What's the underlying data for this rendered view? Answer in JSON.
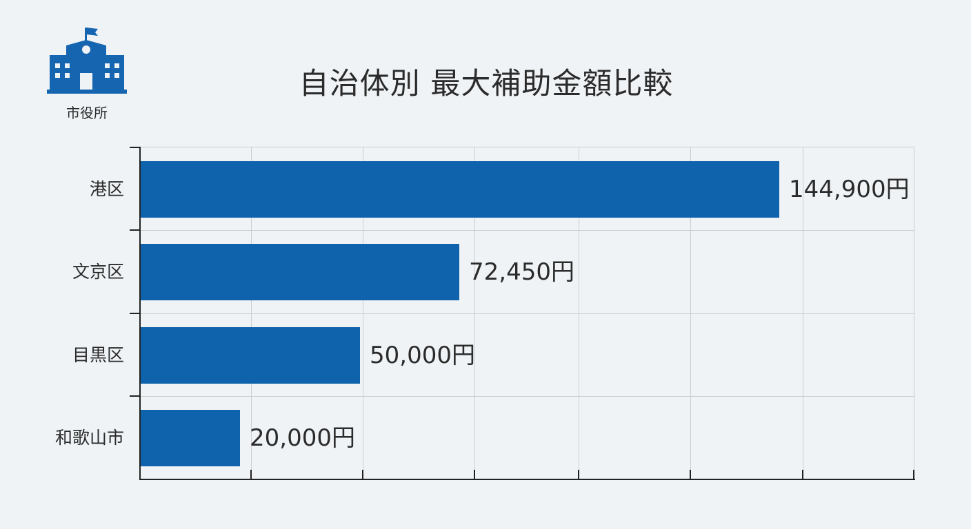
{
  "logo": {
    "icon": "city-hall-icon",
    "label": "市役所",
    "color": "#1565b0"
  },
  "title": "自治体別 最大補助金額比較",
  "chart_data": {
    "type": "bar",
    "orientation": "horizontal",
    "title": "自治体別 最大補助金額比較",
    "categories": [
      "港区",
      "文京区",
      "目黒区",
      "和歌山市"
    ],
    "values": [
      144900,
      72450,
      50000,
      20000
    ],
    "value_labels": [
      "144,900円",
      "72,450円",
      "50,000円",
      "20,000円"
    ],
    "unit": "円",
    "xlabel": "",
    "ylabel": "",
    "xlim": [
      0,
      175000
    ],
    "grid": true,
    "legend": null,
    "bar_color": "#0f63ad"
  },
  "colors": {
    "background": "#eff3f6",
    "bar": "#0f63ad",
    "grid": "#c9ccd0",
    "axis": "#222222",
    "text": "#2b2b2b"
  }
}
